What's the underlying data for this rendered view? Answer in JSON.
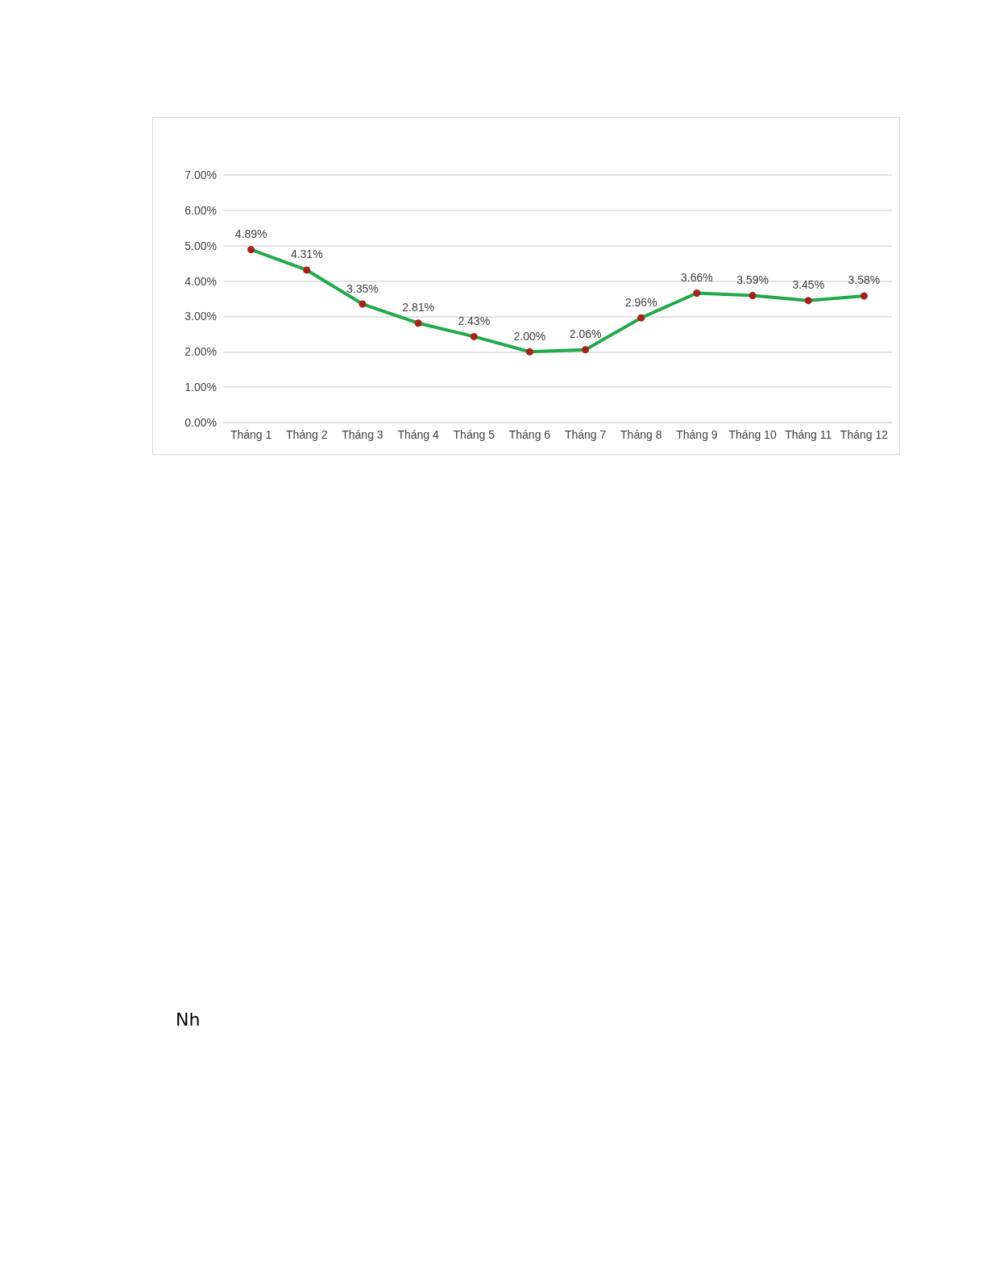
{
  "chart_data": {
    "type": "line",
    "categories": [
      "Tháng 1",
      "Tháng 2",
      "Tháng 3",
      "Tháng 4",
      "Tháng 5",
      "Tháng 6",
      "Tháng 7",
      "Tháng 8",
      "Tháng 9",
      "Tháng 10",
      "Tháng 11",
      "Tháng 12"
    ],
    "series": [
      {
        "color": "#23a84b",
        "colors": [
          "#a3241c",
          "#a3241c",
          "#a3241c",
          "#a3241c",
          "#a3241c",
          "#a3241c",
          "#a3241c",
          "#a3241c",
          "#a3241c",
          "#a3241c",
          "#a3241c",
          "#a3241c"
        ],
        "values": [
          4.89,
          4.31,
          3.35,
          2.81,
          2.43,
          2.0,
          2.06,
          2.96,
          3.66,
          3.59,
          3.45,
          3.58
        ],
        "value_labels": [
          "4.89%",
          "4.31%",
          "3.35%",
          "2.81%",
          "2.43%",
          "2.00%",
          "2.06%",
          "2.96%",
          "3.66%",
          "3.59%",
          "3.45%",
          "3.58%"
        ]
      }
    ],
    "ylim": [
      0,
      7
    ],
    "yticks": [
      {
        "value": 0,
        "label": "0.00%"
      },
      {
        "value": 1,
        "label": "1.00%"
      },
      {
        "value": 2,
        "label": "2.00%"
      },
      {
        "value": 3,
        "label": "3.00%"
      },
      {
        "value": 4,
        "label": "4.00%"
      },
      {
        "value": 5,
        "label": "5.00%"
      },
      {
        "value": 6,
        "label": "6.00%"
      },
      {
        "value": 7,
        "label": "7.00%"
      }
    ],
    "grid": "y",
    "marker": "circle",
    "line_style": "solid",
    "annotations": [
      "Nh"
    ]
  }
}
